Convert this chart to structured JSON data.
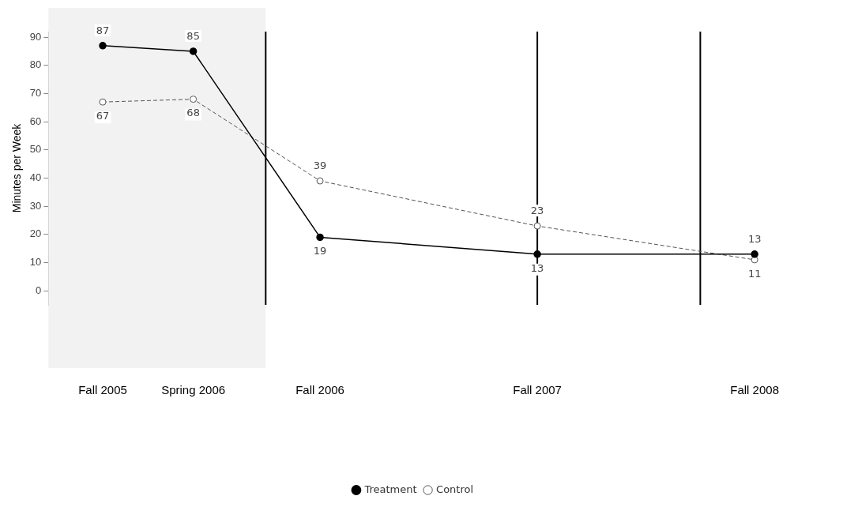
{
  "chart_data": {
    "type": "line",
    "ylabel": "Minutes per Week",
    "x": [
      "2005-09",
      "2006-02",
      "2006-09",
      "2007-09",
      "2008-09"
    ],
    "xlim": [
      "2005-06",
      "2008-09"
    ],
    "xticks": [
      {
        "value": "2005-09",
        "label": "Fall 2005"
      },
      {
        "value": "2006-02",
        "label": "Spring 2006"
      },
      {
        "value": "2006-09",
        "label": "Fall 2006"
      },
      {
        "value": "2007-09",
        "label": "Fall 2007"
      },
      {
        "value": "2008-09",
        "label": "Fall 2008"
      }
    ],
    "ylim": [
      -5,
      92
    ],
    "yticks": [
      0,
      10,
      20,
      30,
      40,
      50,
      60,
      70,
      80,
      90
    ],
    "series": [
      {
        "name": "Treatment",
        "color": "#000000",
        "values": [
          87,
          85,
          19,
          13,
          13
        ],
        "line_style": "solid"
      },
      {
        "name": "Control",
        "color": "#555555",
        "values": [
          67,
          68,
          39,
          23,
          11
        ],
        "line_style": "dashed"
      }
    ],
    "bands": [
      {
        "axis": "x",
        "from": "2005-06",
        "to": "2006-06",
        "color": "#f2f2f2"
      }
    ],
    "ref_lines": [
      {
        "axis": "x",
        "value": "2006-06",
        "color": "#000000"
      },
      {
        "axis": "x",
        "value": "2007-09",
        "color": "#000000"
      },
      {
        "axis": "x",
        "value": "2008-06",
        "color": "#000000"
      }
    ],
    "data_labels": true,
    "marker": "circle",
    "grid": false,
    "legend": "bottom"
  }
}
